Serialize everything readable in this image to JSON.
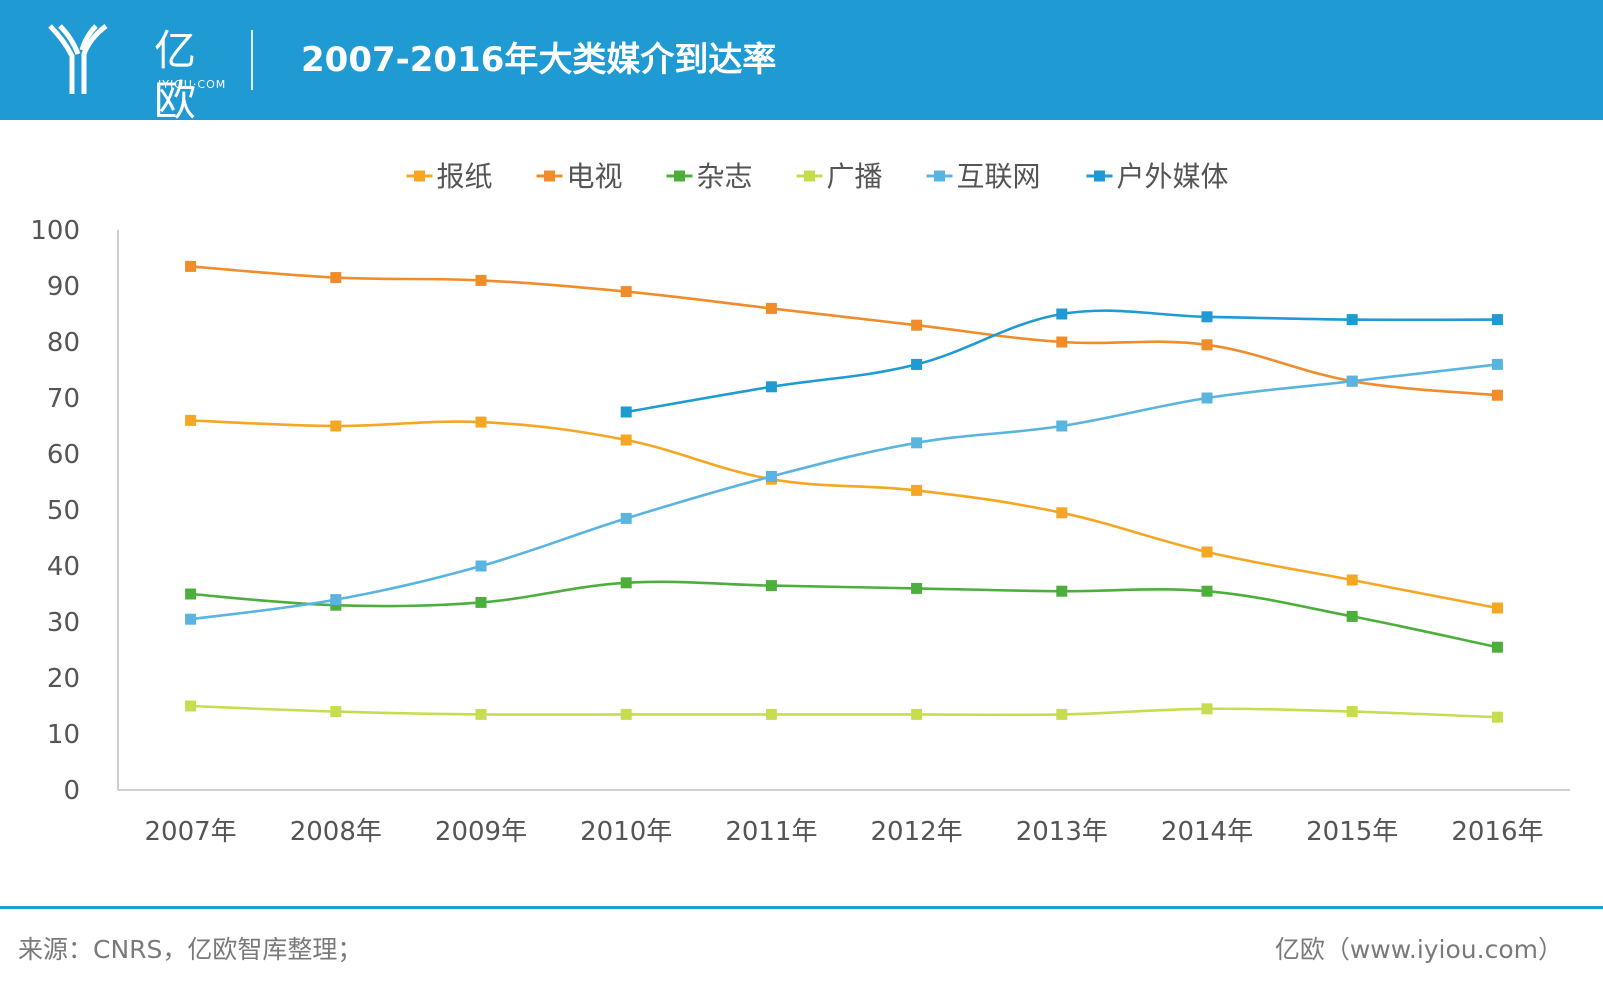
{
  "header": {
    "logo_text": "亿欧",
    "logo_sub": "IYIOU·COM",
    "title": "2007-2016年大类媒介到达率"
  },
  "footer": {
    "source": "来源：CNRS，亿欧智库整理；",
    "credit": "亿欧（www.iyiou.com）"
  },
  "colors": {
    "header_bg": "#1f9ad3",
    "footer_line": "#1f9ad3"
  },
  "chart_data": {
    "type": "line",
    "title": "",
    "xlabel": "",
    "ylabel": "",
    "ylim": [
      0,
      100
    ],
    "yticks": [
      "0",
      "10",
      "20",
      "30",
      "40",
      "50",
      "60",
      "70",
      "80",
      "90",
      "100"
    ],
    "categories": [
      "2007年",
      "2008年",
      "2009年",
      "2010年",
      "2011年",
      "2012年",
      "2013年",
      "2014年",
      "2015年",
      "2016年"
    ],
    "legend_position": "top-center",
    "grid": false,
    "series": [
      {
        "name": "报纸",
        "color": "#f5a623",
        "values": [
          66,
          65,
          65.7,
          62.5,
          55.5,
          53.5,
          49.5,
          42.5,
          37.5,
          32.5
        ]
      },
      {
        "name": "电视",
        "color": "#f08c2a",
        "values": [
          93.5,
          91.5,
          91,
          89,
          86,
          83,
          80,
          79.5,
          73,
          70.5
        ]
      },
      {
        "name": "杂志",
        "color": "#4caf3c",
        "values": [
          35,
          33,
          33.5,
          37,
          36.5,
          36,
          35.5,
          35.5,
          31,
          25.5
        ]
      },
      {
        "name": "广播",
        "color": "#c8dc50",
        "values": [
          15,
          14,
          13.5,
          13.5,
          13.5,
          13.5,
          13.5,
          14.5,
          14,
          13
        ]
      },
      {
        "name": "互联网",
        "color": "#5ab4e0",
        "values": [
          30.5,
          34,
          40,
          48.5,
          56,
          62,
          65,
          70,
          73,
          76
        ]
      },
      {
        "name": "户外媒体",
        "color": "#1f9ad3",
        "values": [
          null,
          null,
          null,
          67.5,
          72,
          76,
          85,
          84.5,
          84,
          84
        ]
      }
    ]
  }
}
